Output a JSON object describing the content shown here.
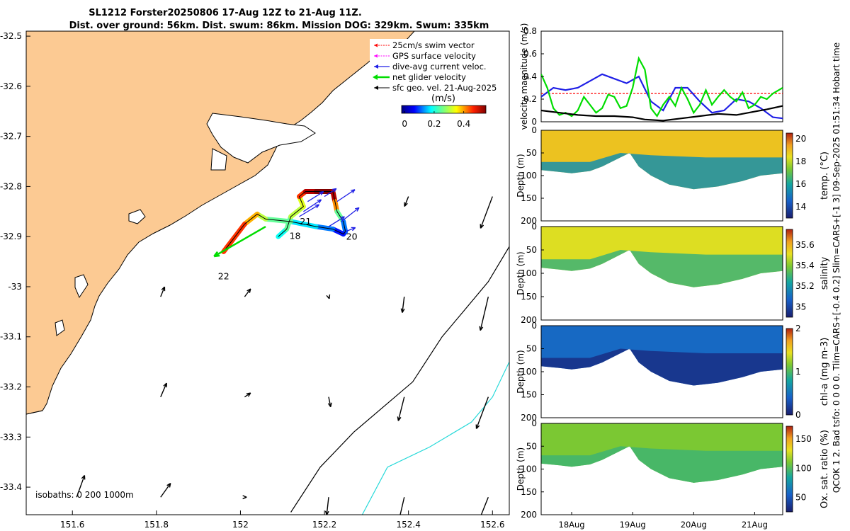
{
  "title": {
    "line1": "SL1212 Forster20250806 17-Aug 12Z to 21-Aug 11Z.",
    "line2": "Dist. over ground: 56km. Dist. swum: 86km. Mission DOG: 329km. Swum: 335km"
  },
  "side_note": "QCOK 1  2. Bad tsfo: 0  0  0  0. Tlim=CARS+[-0.4  0.2] Slim=CARS+[-1  3] 09-Sep-2025 01:51:34 Hobart time",
  "colors": {
    "land": "#fcca93",
    "swim_vector": "#ff0000",
    "gps_velocity": "#ff00ff",
    "current_velocity": "#1f1fe6",
    "net_velocity": "#00dd00",
    "geo_velocity": "#000000",
    "isobath_shallow": "#000000",
    "isobath_deep": "#26d9d9"
  },
  "chart_data": [
    {
      "type": "map",
      "name": "track-map",
      "x_ticks": [
        "151.6",
        "151.8",
        "152",
        "152.2",
        "152.4",
        "152.6"
      ],
      "x_tick_values": [
        151.6,
        151.8,
        152.0,
        152.2,
        152.4,
        152.6
      ],
      "y_ticks": [
        "-32.5",
        "-32.6",
        "-32.7",
        "-32.8",
        "-32.9",
        "-33",
        "-33.1",
        "-33.2",
        "-33.3",
        "-33.4"
      ],
      "y_tick_values": [
        -32.5,
        -32.6,
        -32.7,
        -32.8,
        -32.9,
        -33.0,
        -33.1,
        -33.2,
        -33.3,
        -33.4
      ],
      "xlim": [
        151.49,
        152.64
      ],
      "ylim": [
        -33.455,
        -32.49
      ],
      "legend": [
        {
          "label": "25cm/s swim vector",
          "icon": "red-dotted-arrow-icon"
        },
        {
          "label": "GPS surface velocity",
          "icon": "magenta-dotted-arrow-icon"
        },
        {
          "label": "dive-avg current veloc.",
          "icon": "blue-arrow-icon"
        },
        {
          "label": "net glider velocity",
          "icon": "green-thick-arrow-icon"
        },
        {
          "label": "sfc geo. vel. 21-Aug-2025",
          "icon": "black-arrow-icon"
        }
      ],
      "colorbar": {
        "label": "(m/s)",
        "ticks": [
          "0",
          "0.2",
          "0.4"
        ],
        "tick_values": [
          0,
          0.2,
          0.4
        ],
        "range": [
          -0.02,
          0.55
        ]
      },
      "day_labels": [
        {
          "text": "18",
          "lon": 152.13,
          "lat": -32.905
        },
        {
          "text": "20",
          "lon": 152.265,
          "lat": -32.906
        },
        {
          "text": "21",
          "lon": 152.155,
          "lat": -32.876
        },
        {
          "text": "22",
          "lon": 151.96,
          "lat": -32.985
        }
      ],
      "track": {
        "lon": [
          152.09,
          152.11,
          152.12,
          152.15,
          152.14,
          152.155,
          152.18,
          152.22,
          152.225,
          152.23,
          152.245,
          152.25,
          152.245,
          152.22,
          152.18,
          152.12,
          152.06,
          152.04,
          152.01,
          151.96
        ],
        "lat": [
          -32.9,
          -32.885,
          -32.86,
          -32.84,
          -32.82,
          -32.81,
          -32.81,
          -32.81,
          -32.83,
          -32.85,
          -32.87,
          -32.89,
          -32.895,
          -32.885,
          -32.88,
          -32.87,
          -32.865,
          -32.855,
          -32.875,
          -32.93
        ],
        "speed": [
          0.2,
          0.25,
          0.3,
          0.32,
          0.45,
          0.52,
          0.55,
          0.52,
          0.4,
          0.25,
          0.12,
          0.1,
          0.06,
          0.12,
          0.18,
          0.25,
          0.3,
          0.38,
          0.45,
          0.4
        ]
      },
      "geo_vectors": [
        {
          "lon": 152.4,
          "lat": -32.82,
          "u": -0.02,
          "v": -0.05
        },
        {
          "lon": 152.6,
          "lat": -32.82,
          "u": -0.06,
          "v": -0.16
        },
        {
          "lon": 151.81,
          "lat": -33.02,
          "u": 0.02,
          "v": 0.05
        },
        {
          "lon": 152.01,
          "lat": -33.02,
          "u": 0.03,
          "v": 0.04
        },
        {
          "lon": 152.21,
          "lat": -33.02,
          "u": 0.003,
          "v": -0.01
        },
        {
          "lon": 152.39,
          "lat": -33.02,
          "u": -0.01,
          "v": -0.08
        },
        {
          "lon": 152.59,
          "lat": -33.02,
          "u": -0.04,
          "v": -0.17
        },
        {
          "lon": 151.81,
          "lat": -33.22,
          "u": 0.03,
          "v": 0.07
        },
        {
          "lon": 152.01,
          "lat": -33.22,
          "u": 0.03,
          "v": 0.02
        },
        {
          "lon": 152.21,
          "lat": -33.22,
          "u": 0.01,
          "v": -0.05
        },
        {
          "lon": 152.39,
          "lat": -33.22,
          "u": -0.03,
          "v": -0.12
        },
        {
          "lon": 152.59,
          "lat": -33.22,
          "u": -0.06,
          "v": -0.16
        },
        {
          "lon": 151.61,
          "lat": -33.42,
          "u": 0.04,
          "v": 0.11
        },
        {
          "lon": 151.81,
          "lat": -33.42,
          "u": 0.05,
          "v": 0.07
        },
        {
          "lon": 152.01,
          "lat": -33.42,
          "u": 0.01,
          "v": 0.0
        },
        {
          "lon": 152.21,
          "lat": -33.42,
          "u": -0.01,
          "v": -0.09
        },
        {
          "lon": 152.39,
          "lat": -33.42,
          "u": -0.03,
          "v": -0.13
        },
        {
          "lon": 152.59,
          "lat": -33.42,
          "u": -0.06,
          "v": -0.15
        }
      ],
      "current_vectors": [
        {
          "lon": 152.14,
          "lat": -32.86,
          "u": 0.1,
          "v": 0.06
        },
        {
          "lon": 152.15,
          "lat": -32.85,
          "u": 0.09,
          "v": 0.06
        },
        {
          "lon": 152.16,
          "lat": -32.83,
          "u": 0.08,
          "v": 0.05
        },
        {
          "lon": 152.2,
          "lat": -32.82,
          "u": 0.06,
          "v": 0.04
        },
        {
          "lon": 152.23,
          "lat": -32.83,
          "u": 0.09,
          "v": 0.06
        },
        {
          "lon": 152.24,
          "lat": -32.87,
          "u": 0.09,
          "v": 0.07
        },
        {
          "lon": 152.21,
          "lat": -32.88,
          "u": 0.08,
          "v": 0.05
        },
        {
          "lon": 152.25,
          "lat": -32.89,
          "u": 0.05,
          "v": 0.02
        }
      ],
      "net_vector": {
        "lon": 152.06,
        "lat": -32.88,
        "u": -0.26,
        "v": -0.15
      },
      "isobath_label": "isobaths: 0   200  1000m",
      "isobaths": {
        "200": {
          "lon": [
            152.12,
            152.19,
            152.27,
            152.41,
            152.48,
            152.53,
            152.59,
            152.64
          ],
          "lat": [
            -33.45,
            -33.36,
            -33.29,
            -33.19,
            -33.1,
            -33.05,
            -32.99,
            -32.92
          ]
        },
        "1000": {
          "lon": [
            152.29,
            152.35,
            152.45,
            152.55,
            152.6,
            152.64
          ],
          "lat": [
            -33.455,
            -33.36,
            -33.32,
            -33.27,
            -33.22,
            -33.15
          ]
        }
      }
    },
    {
      "type": "line",
      "name": "velocity-magnitude",
      "ylabel": "velocity magnitude (m/s)",
      "xlim": [
        17.5,
        21.46
      ],
      "ylim": [
        0,
        0.8
      ],
      "yticks": [
        "0",
        "0.2",
        "0.4",
        "0.6",
        "0.8"
      ],
      "ytick_values": [
        0,
        0.2,
        0.4,
        0.6,
        0.8
      ],
      "series": [
        {
          "name": "25cm/s swim",
          "color": "#ff0000",
          "x": [
            17.5,
            21.46
          ],
          "y": [
            0.25,
            0.25
          ]
        },
        {
          "name": "dive-avg current",
          "color": "#1f1fe6",
          "x": [
            17.5,
            17.7,
            17.9,
            18.1,
            18.3,
            18.5,
            18.7,
            18.9,
            19.1,
            19.3,
            19.5,
            19.7,
            19.9,
            20.1,
            20.3,
            20.5,
            20.7,
            20.9,
            21.1,
            21.3,
            21.46
          ],
          "y": [
            0.22,
            0.3,
            0.28,
            0.3,
            0.36,
            0.42,
            0.38,
            0.34,
            0.4,
            0.18,
            0.1,
            0.3,
            0.3,
            0.18,
            0.08,
            0.1,
            0.2,
            0.18,
            0.12,
            0.04,
            0.03
          ]
        },
        {
          "name": "net glider",
          "color": "#00dd00",
          "x": [
            17.5,
            17.6,
            17.7,
            17.8,
            17.9,
            18.0,
            18.1,
            18.2,
            18.3,
            18.4,
            18.5,
            18.6,
            18.7,
            18.8,
            18.9,
            19.0,
            19.1,
            19.2,
            19.3,
            19.4,
            19.5,
            19.6,
            19.7,
            19.8,
            19.9,
            20.0,
            20.1,
            20.2,
            20.3,
            20.4,
            20.5,
            20.6,
            20.7,
            20.8,
            20.9,
            21.0,
            21.1,
            21.2,
            21.3,
            21.46
          ],
          "y": [
            0.42,
            0.3,
            0.12,
            0.06,
            0.08,
            0.05,
            0.1,
            0.22,
            0.15,
            0.08,
            0.12,
            0.24,
            0.22,
            0.12,
            0.14,
            0.3,
            0.56,
            0.46,
            0.12,
            0.05,
            0.15,
            0.22,
            0.14,
            0.3,
            0.2,
            0.08,
            0.15,
            0.28,
            0.15,
            0.22,
            0.28,
            0.22,
            0.18,
            0.26,
            0.12,
            0.15,
            0.22,
            0.2,
            0.25,
            0.3
          ]
        },
        {
          "name": "GPS surface",
          "color": "#000000",
          "x": [
            17.5,
            17.8,
            18.1,
            18.4,
            18.7,
            19.0,
            19.2,
            19.5,
            19.8,
            20.1,
            20.4,
            20.7,
            21.0,
            21.2,
            21.46
          ],
          "y": [
            0.1,
            0.08,
            0.06,
            0.05,
            0.05,
            0.04,
            0.02,
            0.01,
            0.03,
            0.05,
            0.07,
            0.06,
            0.09,
            0.11,
            0.14
          ]
        }
      ]
    },
    {
      "type": "heatmap",
      "name": "temperature-section",
      "ylabel": "Depth (m)",
      "colorbar_label": "temp. (°C)",
      "cticks": [
        "14",
        "16",
        "18",
        "20"
      ],
      "ctick_values": [
        14,
        16,
        18,
        20
      ],
      "clim": [
        13,
        20.5
      ],
      "ylim": [
        0,
        200
      ],
      "yticks": [
        "0",
        "50",
        "100",
        "150",
        "200"
      ],
      "ytick_values": [
        0,
        50,
        100,
        150,
        200
      ],
      "xlim": [
        17.5,
        21.46
      ],
      "surface_value": 18.9,
      "deep_value": 15.5
    },
    {
      "type": "heatmap",
      "name": "salinity-section",
      "ylabel": "Depth (m)",
      "colorbar_label": "salinity",
      "cticks": [
        "35",
        "35.2",
        "35.4",
        "35.6"
      ],
      "ctick_values": [
        35.0,
        35.2,
        35.4,
        35.6
      ],
      "clim": [
        34.9,
        35.75
      ],
      "ylim": [
        0,
        200
      ],
      "yticks": [
        "0",
        "50",
        "100",
        "150",
        "200"
      ],
      "ytick_values": [
        0,
        50,
        100,
        150,
        200
      ],
      "xlim": [
        17.5,
        21.46
      ],
      "surface_value": 35.5,
      "deep_value": 35.3
    },
    {
      "type": "heatmap",
      "name": "chlorophyll-section",
      "ylabel": "Depth (m)",
      "colorbar_label": "chl-a (mg m-3)",
      "cticks": [
        "0",
        "1",
        "2"
      ],
      "ctick_values": [
        0,
        1,
        2
      ],
      "clim": [
        0,
        2
      ],
      "ylim": [
        0,
        200
      ],
      "yticks": [
        "0",
        "50",
        "100",
        "150",
        "200"
      ],
      "ytick_values": [
        0,
        50,
        100,
        150,
        200
      ],
      "xlim": [
        17.5,
        21.46
      ],
      "surface_value": 0.45,
      "deep_value": 0.1
    },
    {
      "type": "heatmap",
      "name": "oxygen-section",
      "ylabel": "Depth (m)",
      "colorbar_label": "Ox. sat. ratio (%)",
      "cticks": [
        "50",
        "100",
        "150"
      ],
      "ctick_values": [
        50,
        100,
        150
      ],
      "clim": [
        25,
        172
      ],
      "ylim": [
        0,
        200
      ],
      "yticks": [
        "0",
        "50",
        "100",
        "150",
        "200"
      ],
      "ytick_values": [
        0,
        50,
        100,
        150,
        200
      ],
      "xlim": [
        17.5,
        21.46
      ],
      "xticks": [
        "18Aug",
        "19Aug",
        "20Aug",
        "21Aug"
      ],
      "xtick_values": [
        18,
        19,
        20,
        21
      ],
      "surface_value": 110,
      "deep_value": 95
    }
  ]
}
